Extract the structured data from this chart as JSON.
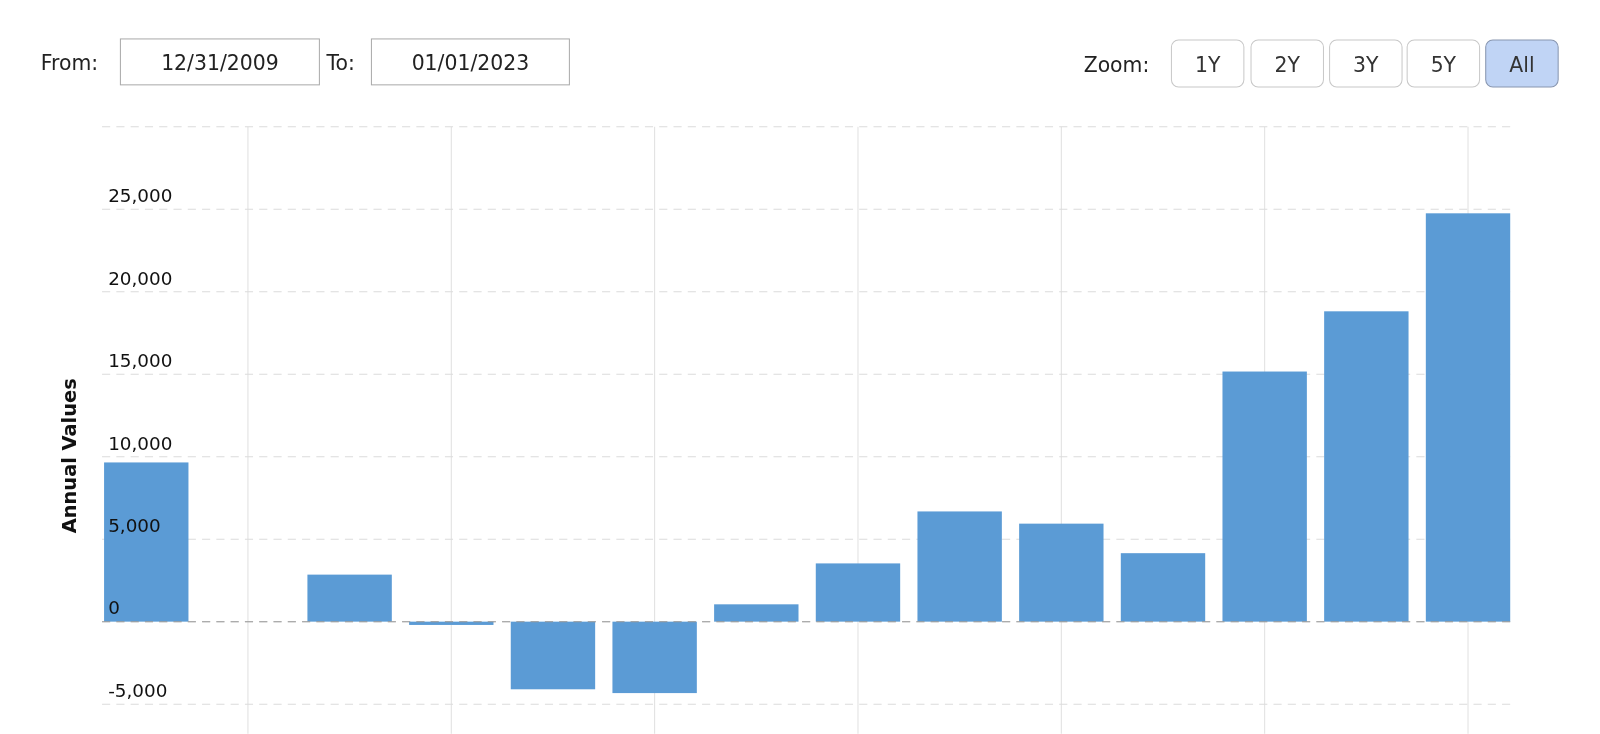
{
  "chart_data": {
    "type": "bar",
    "ylabel": "Annual Values",
    "categories": [
      null,
      null,
      null,
      null,
      null,
      null,
      null,
      null,
      null,
      null,
      null,
      null,
      null,
      null
    ],
    "values": [
      9650,
      null,
      2850,
      -200,
      -4100,
      -4330,
      1050,
      3530,
      6680,
      5940,
      4150,
      15160,
      18810,
      24750
    ],
    "color": "#5b9bd5",
    "ylim": [
      -6800,
      30000
    ],
    "yticks": [
      {
        "value": -5000,
        "label": "-5,000"
      },
      0,
      {
        "value": 5000,
        "label": "5,000"
      },
      {
        "value": 10000,
        "label": "10,000"
      },
      {
        "value": 15000,
        "label": "15,000"
      },
      {
        "value": 20000,
        "label": "20,000"
      },
      {
        "value": 25000,
        "label": "25,000"
      },
      {
        "value": 30000,
        "label": null
      }
    ],
    "grid": true,
    "ref_lines": [
      {
        "axis": "y",
        "value": 0,
        "color": "#999999",
        "line_style": "dashed"
      }
    ],
    "annotations": [
      "From:",
      "12/31/2009",
      "To:",
      "01/01/2023",
      "Zoom:",
      "1Y",
      "2Y",
      "3Y",
      "5Y",
      "All"
    ]
  }
}
